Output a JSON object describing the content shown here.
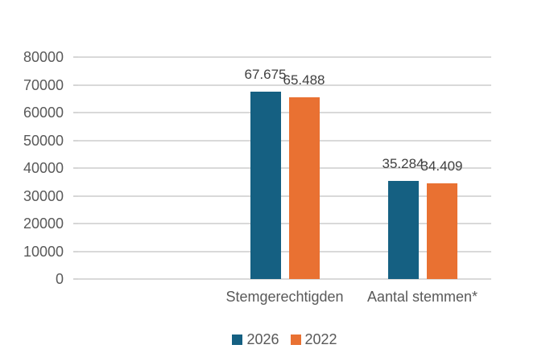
{
  "chart_data": {
    "type": "bar",
    "title": "",
    "categories": [
      "Stemgerechtigden",
      "Aantal stemmen*"
    ],
    "series": [
      {
        "name": "2026",
        "color": "#156082",
        "values": [
          67675,
          35284
        ],
        "labels": [
          "67.675",
          "35.284"
        ]
      },
      {
        "name": "2022",
        "color": "#E97132",
        "values": [
          65488,
          34409
        ],
        "labels": [
          "65.488",
          "34.409"
        ]
      }
    ],
    "y_axis": {
      "min": 0,
      "max": 80000,
      "step": 10000,
      "tick_labels": [
        "0",
        "10000",
        "20000",
        "30000",
        "40000",
        "50000",
        "60000",
        "70000",
        "80000"
      ]
    },
    "grid": true,
    "legend_position": "bottom",
    "layout_hint": {
      "total_slots": 3,
      "empty_leading_slots": 1
    }
  },
  "colors": {
    "background": "#FFFFFF",
    "gridline": "#D9D9D9",
    "axis_text": "#595959",
    "data_label_text": "#404040",
    "series_2026": "#156082",
    "series_2022": "#E97132"
  }
}
